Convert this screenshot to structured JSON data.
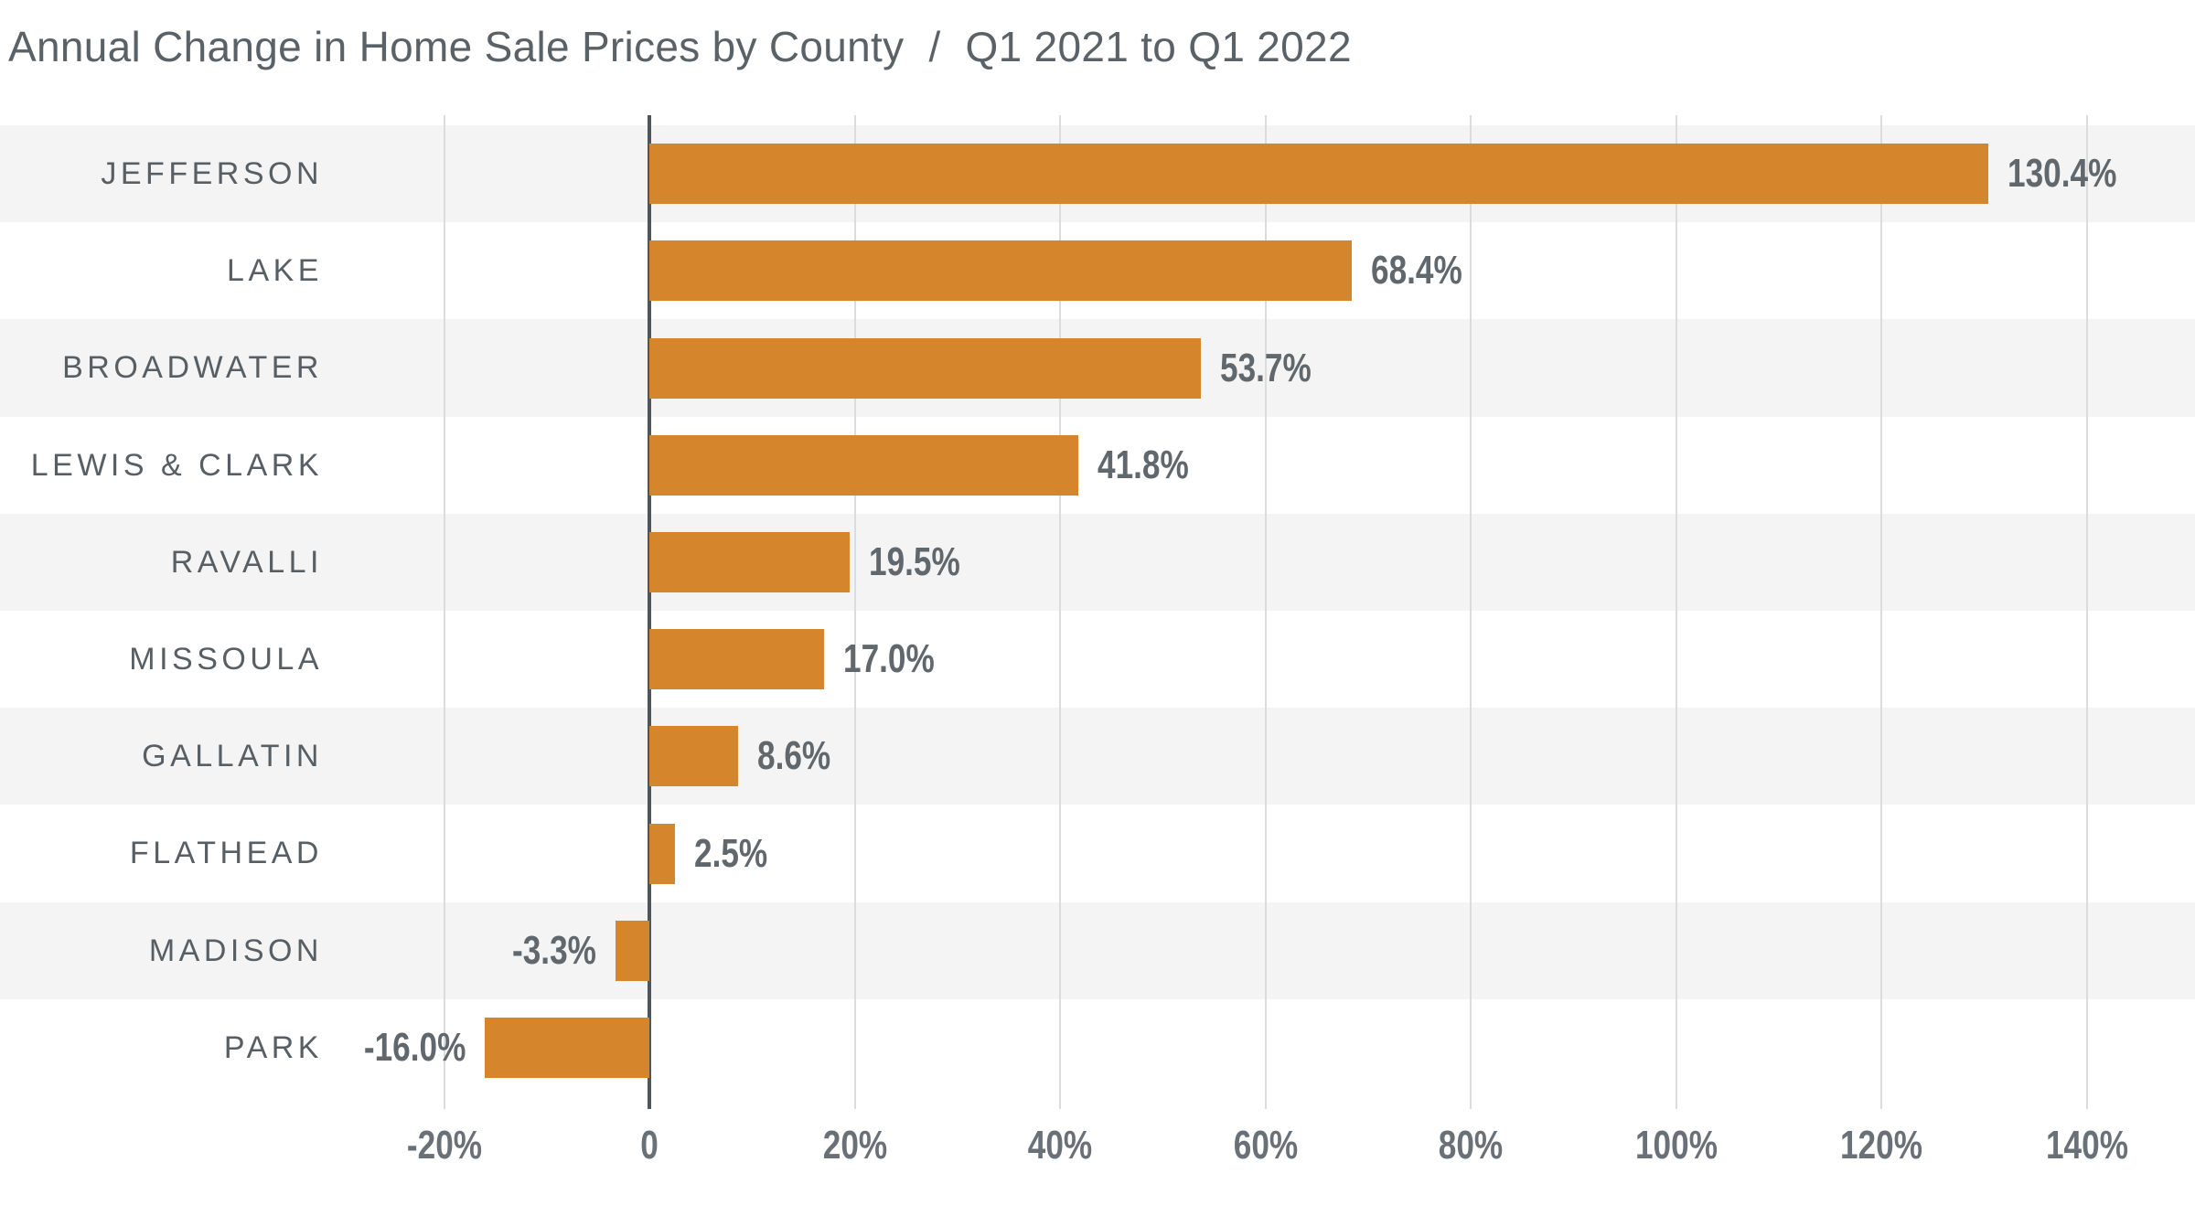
{
  "title": {
    "main": "Annual Change in Home Sale Prices by County",
    "separator": "/",
    "period": "Q1 2021 to Q1 2022"
  },
  "chart_data": {
    "type": "bar",
    "orientation": "horizontal",
    "title": "Annual Change in Home Sale Prices by County / Q1 2021 to Q1 2022",
    "categories": [
      "JEFFERSON",
      "LAKE",
      "BROADWATER",
      "LEWIS & CLARK",
      "RAVALLI",
      "MISSOULA",
      "GALLATIN",
      "FLATHEAD",
      "MADISON",
      "PARK"
    ],
    "values": [
      130.4,
      68.4,
      53.7,
      41.8,
      19.5,
      17.0,
      8.6,
      2.5,
      -3.3,
      -16.0
    ],
    "value_labels": [
      "130.4%",
      "68.4%",
      "53.7%",
      "41.8%",
      "19.5%",
      "17.0%",
      "8.6%",
      "2.5%",
      "-3.3%",
      "-16.0%"
    ],
    "xlabel": "",
    "ylabel": "",
    "x_ticks": [
      -20,
      0,
      20,
      40,
      60,
      80,
      100,
      120,
      140
    ],
    "x_tick_labels": [
      "-20%",
      "0",
      "20%",
      "40%",
      "60%",
      "80%",
      "100%",
      "120%",
      "140%"
    ],
    "x_axis_range": [
      -20,
      140
    ],
    "grid": "vertical",
    "legend": null,
    "row_striping": "alternate starting gray at first row",
    "colors": {
      "bar": "#D5862C",
      "row_stripe": "#F4F4F4",
      "gridline": "#DBDDDD",
      "zero_axis_line": "#4E555B",
      "title_text": "#5A6267",
      "category_text": "#575F65",
      "value_text": "#60676D",
      "tick_text": "#6A7077",
      "background": "#FFFFFF"
    }
  }
}
